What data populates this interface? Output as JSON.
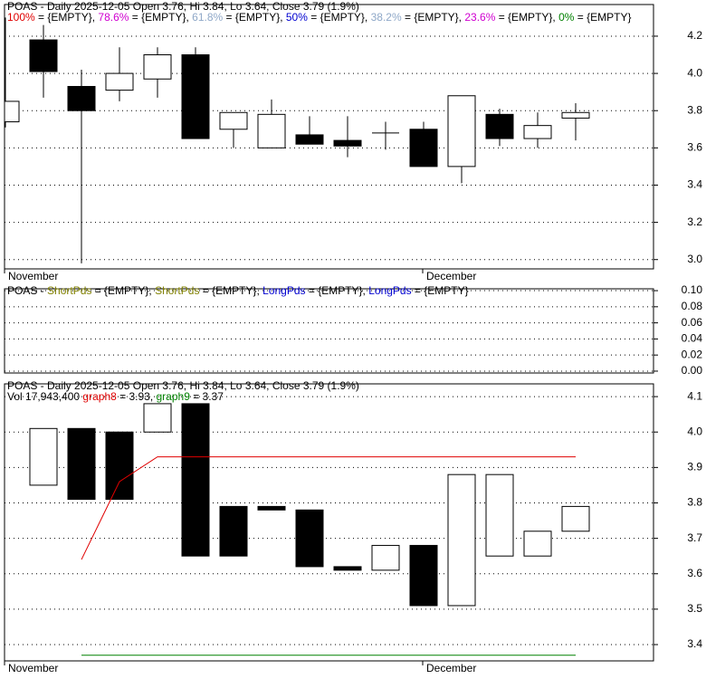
{
  "chart_data": [
    {
      "type": "candlestick",
      "title": "POAS - Daily 2025-12-05 Open 3.76, Hi 3.84, Lo 3.64, Close 3.79 (1.9%)",
      "legend": [
        {
          "name": "100%",
          "color": "#e00000",
          "legend_text": " = {EMPTY}, "
        },
        {
          "name": "78.6%",
          "color": "#d000d0",
          "legend_text": " = {EMPTY}, "
        },
        {
          "name": "61.8%",
          "color": "#8fa8c8",
          "legend_text": " = {EMPTY}, "
        },
        {
          "name": "50%",
          "color": "#0000d0",
          "legend_text": " = {EMPTY}, "
        },
        {
          "name": "38.2%",
          "color": "#8fa8c8",
          "legend_text": " = {EMPTY}, "
        },
        {
          "name": "23.6%",
          "color": "#d000d0",
          "legend_text": " = {EMPTY}, "
        },
        {
          "name": "0%",
          "color": "#008000",
          "legend_text": " = {EMPTY}"
        }
      ],
      "categories": [
        "November",
        null,
        null,
        null,
        null,
        null,
        null,
        null,
        null,
        null,
        null,
        "December",
        null,
        null,
        null,
        null
      ],
      "open": [
        3.74,
        4.18,
        3.93,
        3.91,
        3.97,
        4.1,
        3.7,
        3.6,
        3.67,
        3.64,
        3.68,
        3.7,
        3.5,
        3.78,
        3.65,
        3.76
      ],
      "high": [
        4.3,
        4.26,
        4.02,
        4.14,
        4.14,
        4.14,
        3.79,
        3.86,
        3.77,
        3.77,
        3.74,
        3.74,
        3.88,
        3.81,
        3.79,
        3.84
      ],
      "low": [
        3.71,
        3.87,
        2.98,
        3.85,
        3.87,
        3.65,
        3.6,
        3.6,
        3.62,
        3.55,
        3.59,
        3.5,
        3.41,
        3.61,
        3.6,
        3.64
      ],
      "close": [
        3.85,
        4.01,
        3.8,
        4.0,
        4.1,
        3.65,
        3.79,
        3.78,
        3.62,
        3.61,
        3.68,
        3.5,
        3.88,
        3.65,
        3.72,
        3.79
      ],
      "ylim": [
        2.95,
        4.37
      ],
      "yticks": [
        {
          "value": 3,
          "label": "3.0"
        },
        3.2,
        3.4,
        3.6,
        3.8,
        {
          "value": 4,
          "label": "4.0"
        },
        4.2
      ],
      "grid": true
    },
    {
      "type": "line",
      "title": "POAS - ",
      "legend": [
        {
          "name": "ShortPds",
          "color": "#808000",
          "legend_text": " = {EMPTY}, "
        },
        {
          "name": "ShortPds",
          "color": "#808000",
          "legend_text": " = {EMPTY}, "
        },
        {
          "name": "LongPds",
          "color": "#0000d0",
          "legend_text": " = {EMPTY}, "
        },
        {
          "name": "LongPds",
          "color": "#0000d0",
          "legend_text": " = {EMPTY}"
        }
      ],
      "ylim": [
        -0.0023,
        0.1023
      ],
      "yticks": [
        {
          "value": 0,
          "label": "0.00"
        },
        {
          "value": 0.02,
          "label": "0.02"
        },
        {
          "value": 0.04,
          "label": "0.04"
        },
        {
          "value": 0.06,
          "label": "0.06"
        },
        {
          "value": 0.08,
          "label": "0.08"
        },
        {
          "value": 0.1,
          "label": "0.10"
        }
      ],
      "grid": true
    },
    {
      "type": "candlestick",
      "title": "POAS - Daily 2025-12-05 Open 3.76, Hi 3.84, Lo 3.64, Close 3.79 (1.9%)",
      "volume_label": "Vol 17,943,400 ",
      "categories": [
        "November",
        null,
        null,
        null,
        null,
        null,
        null,
        null,
        null,
        null,
        null,
        "December",
        null,
        null,
        null,
        null
      ],
      "open": [
        null,
        3.85,
        4.01,
        4.0,
        4.0,
        4.08,
        3.79,
        3.79,
        3.78,
        3.62,
        3.61,
        3.68,
        3.51,
        3.65,
        3.65,
        3.72
      ],
      "close": [
        null,
        4.01,
        3.81,
        3.81,
        4.08,
        3.65,
        3.65,
        3.78,
        3.62,
        3.61,
        3.68,
        3.51,
        3.88,
        3.88,
        3.72,
        3.79
      ],
      "series": [
        {
          "name": "graph8",
          "color": "#e00000",
          "legend_text": " = 3.93, ",
          "values": [
            null,
            null,
            3.64,
            3.86,
            3.93,
            3.93,
            3.93,
            3.93,
            3.93,
            3.93,
            3.93,
            3.93,
            3.93,
            3.93,
            3.93,
            3.93
          ]
        },
        {
          "name": "graph9",
          "color": "#008000",
          "legend_text": " = 3.37",
          "values": [
            null,
            null,
            3.37,
            3.37,
            3.37,
            3.37,
            3.37,
            3.37,
            3.37,
            3.37,
            3.37,
            3.37,
            3.37,
            3.37,
            3.37,
            3.37
          ]
        }
      ],
      "ylim": [
        3.354,
        4.136
      ],
      "yticks": [
        3.4,
        3.5,
        3.6,
        3.7,
        3.8,
        3.9,
        {
          "value": 4,
          "label": "4.0"
        },
        4.1
      ],
      "grid": true
    }
  ]
}
